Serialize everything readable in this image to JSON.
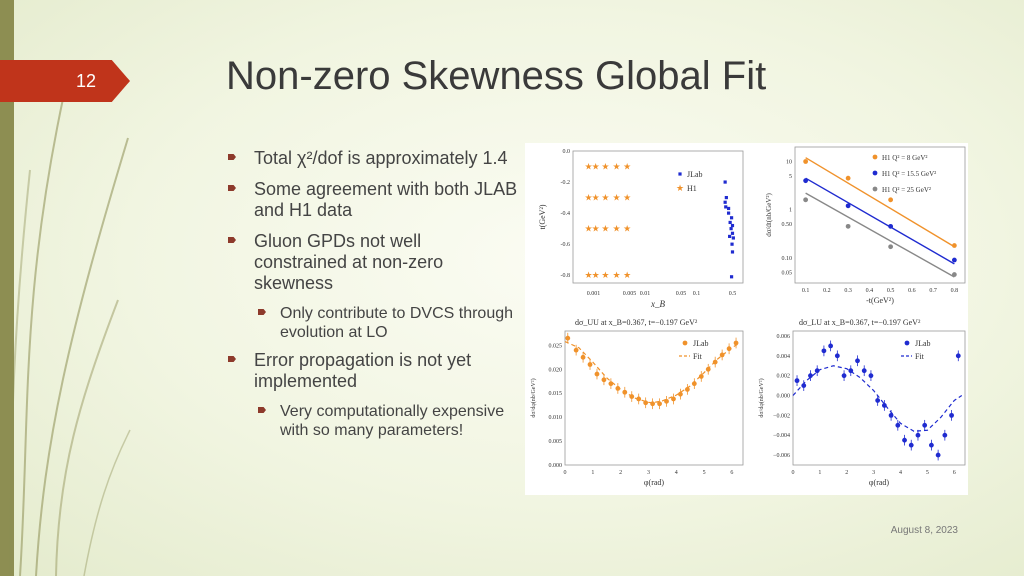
{
  "slide": {
    "number": "12",
    "title": "Non-zero Skewness Global Fit",
    "date": "August 8, 2023",
    "accent_color": "#c0341b",
    "bullet_color": "#8d3a2b"
  },
  "bullets": [
    {
      "text": "Total χ²/dof is approximately 1.4",
      "level": 1
    },
    {
      "text": "Some agreement with both JLAB and H1 data",
      "level": 1
    },
    {
      "text": "Gluon GPDs not well constrained at non-zero skewness",
      "level": 1
    },
    {
      "text": "Only contribute to DVCS through evolution at LO",
      "level": 2
    },
    {
      "text": "Error propagation is not yet implemented",
      "level": 1
    },
    {
      "text": "Very computationally expensive with so many parameters!",
      "level": 2
    }
  ],
  "chart_data": [
    {
      "type": "scatter",
      "xlabel": "x_B",
      "ylabel": "t(GeV²)",
      "x_scale": "log",
      "xticks": [
        "0.001",
        "0.005",
        "0.01",
        "0.05",
        "0.1",
        "0.5"
      ],
      "yticks": [
        "0.0",
        "-0.2",
        "-0.4",
        "-0.6",
        "-0.8"
      ],
      "ylim": [
        -0.85,
        0.0
      ],
      "legend": [
        "JLab",
        "H1"
      ],
      "series": [
        {
          "name": "H1",
          "color": "#f0922b",
          "marker": "star",
          "points": [
            [
              0.0008,
              -0.1
            ],
            [
              0.0011,
              -0.1
            ],
            [
              0.0017,
              -0.1
            ],
            [
              0.0028,
              -0.1
            ],
            [
              0.0045,
              -0.1
            ],
            [
              0.0008,
              -0.3
            ],
            [
              0.0011,
              -0.3
            ],
            [
              0.0017,
              -0.3
            ],
            [
              0.0028,
              -0.3
            ],
            [
              0.0045,
              -0.3
            ],
            [
              0.0008,
              -0.5
            ],
            [
              0.0011,
              -0.5
            ],
            [
              0.0017,
              -0.5
            ],
            [
              0.0028,
              -0.5
            ],
            [
              0.0045,
              -0.5
            ],
            [
              0.0008,
              -0.8
            ],
            [
              0.0011,
              -0.8
            ],
            [
              0.0017,
              -0.8
            ],
            [
              0.0028,
              -0.8
            ],
            [
              0.0045,
              -0.8
            ]
          ]
        },
        {
          "name": "JLab",
          "color": "#1f2bd0",
          "marker": "square",
          "points": [
            [
              0.36,
              -0.2
            ],
            [
              0.38,
              -0.3
            ],
            [
              0.36,
              -0.33
            ],
            [
              0.37,
              -0.36
            ],
            [
              0.42,
              -0.37
            ],
            [
              0.42,
              -0.4
            ],
            [
              0.48,
              -0.43
            ],
            [
              0.45,
              -0.46
            ],
            [
              0.5,
              -0.48
            ],
            [
              0.47,
              -0.5
            ],
            [
              0.5,
              -0.53
            ],
            [
              0.44,
              -0.55
            ],
            [
              0.52,
              -0.56
            ],
            [
              0.49,
              -0.6
            ],
            [
              0.5,
              -0.65
            ],
            [
              0.48,
              -0.81
            ]
          ]
        }
      ]
    },
    {
      "type": "line",
      "xlabel": "-t(GeV²)",
      "ylabel": "dσ/dt(nb/GeV²)",
      "y_scale": "log",
      "xticks": [
        "0.1",
        "0.2",
        "0.3",
        "0.4",
        "0.5",
        "0.6",
        "0.7",
        "0.8"
      ],
      "yticks": [
        "10",
        "5",
        "1",
        "0.50",
        "0.10",
        "0.05"
      ],
      "legend": [
        "H1 Q² = 8 GeV²",
        "H1 Q² = 15.5 GeV²",
        "H1 Q² = 25 GeV²"
      ],
      "series": [
        {
          "name": "H1 Q² = 8 GeV²",
          "color": "#f0922b",
          "points": [
            [
              0.1,
              10
            ],
            [
              0.3,
              4.5
            ],
            [
              0.5,
              1.6
            ],
            [
              0.8,
              0.18
            ]
          ],
          "fit": [
            [
              0.1,
              12
            ],
            [
              0.8,
              0.17
            ]
          ]
        },
        {
          "name": "H1 Q² = 15.5 GeV²",
          "color": "#1f2bd0",
          "points": [
            [
              0.1,
              4.0
            ],
            [
              0.3,
              1.2
            ],
            [
              0.5,
              0.45
            ],
            [
              0.8,
              0.09
            ]
          ],
          "fit": [
            [
              0.1,
              4.5
            ],
            [
              0.8,
              0.075
            ]
          ]
        },
        {
          "name": "H1 Q² = 25 GeV²",
          "color": "#888888",
          "points": [
            [
              0.1,
              1.6
            ],
            [
              0.3,
              0.45
            ],
            [
              0.5,
              0.17
            ],
            [
              0.8,
              0.045
            ]
          ],
          "fit": [
            [
              0.1,
              2.2
            ],
            [
              0.8,
              0.04
            ]
          ]
        }
      ]
    },
    {
      "type": "line",
      "title": "dσ_UU at x_B=0.367, t=−0.197 GeV²",
      "xlabel": "φ(rad)",
      "ylabel": "dσ/dφ(nb/GeV²)",
      "xticks": [
        "0",
        "1",
        "2",
        "3",
        "4",
        "5",
        "6"
      ],
      "yticks": [
        "0.025",
        "0.020",
        "0.015",
        "0.010",
        "0.005",
        "0.000"
      ],
      "xlim": [
        0,
        6.4
      ],
      "ylim": [
        0,
        0.028
      ],
      "legend": [
        "JLab",
        "Fit"
      ],
      "series": [
        {
          "name": "JLab",
          "color": "#f0922b",
          "points": [
            [
              0.1,
              0.0265
            ],
            [
              0.4,
              0.024
            ],
            [
              0.65,
              0.0225
            ],
            [
              0.9,
              0.021
            ],
            [
              1.15,
              0.019
            ],
            [
              1.4,
              0.0178
            ],
            [
              1.65,
              0.017
            ],
            [
              1.9,
              0.016
            ],
            [
              2.15,
              0.0152
            ],
            [
              2.4,
              0.0143
            ],
            [
              2.65,
              0.0138
            ],
            [
              2.9,
              0.013
            ],
            [
              3.15,
              0.0128
            ],
            [
              3.4,
              0.0128
            ],
            [
              3.65,
              0.0133
            ],
            [
              3.9,
              0.0138
            ],
            [
              4.15,
              0.0148
            ],
            [
              4.4,
              0.0158
            ],
            [
              4.65,
              0.017
            ],
            [
              4.9,
              0.0185
            ],
            [
              5.15,
              0.02
            ],
            [
              5.4,
              0.0215
            ],
            [
              5.65,
              0.023
            ],
            [
              5.9,
              0.0243
            ],
            [
              6.15,
              0.0255
            ]
          ]
        },
        {
          "name": "Fit",
          "color": "#f0922b",
          "dashed": true,
          "points": [
            [
              0,
              0.0258
            ],
            [
              0.5,
              0.0245
            ],
            [
              1,
              0.0215
            ],
            [
              1.5,
              0.0182
            ],
            [
              2,
              0.0158
            ],
            [
              2.5,
              0.014
            ],
            [
              3,
              0.0131
            ],
            [
              3.14,
              0.013
            ],
            [
              3.5,
              0.0134
            ],
            [
              4,
              0.0146
            ],
            [
              4.5,
              0.0165
            ],
            [
              5,
              0.0193
            ],
            [
              5.5,
              0.0222
            ],
            [
              6,
              0.0245
            ],
            [
              6.28,
              0.0255
            ]
          ]
        }
      ]
    },
    {
      "type": "line",
      "title": "dσ_LU at x_B=0.367, t=−0.197 GeV²",
      "xlabel": "φ(rad)",
      "ylabel": "dσ/dφ(nb/GeV²)",
      "xticks": [
        "0",
        "1",
        "2",
        "3",
        "4",
        "5",
        "6"
      ],
      "yticks": [
        "0.006",
        "0.004",
        "0.002",
        "0.000",
        "−0.002",
        "−0.004",
        "−0.006"
      ],
      "xlim": [
        0,
        6.4
      ],
      "ylim": [
        -0.007,
        0.0065
      ],
      "legend": [
        "JLab",
        "Fit"
      ],
      "series": [
        {
          "name": "JLab",
          "color": "#1f2bd0",
          "points": [
            [
              0.15,
              0.0015
            ],
            [
              0.4,
              0.001
            ],
            [
              0.65,
              0.002
            ],
            [
              0.9,
              0.0025
            ],
            [
              1.15,
              0.0045
            ],
            [
              1.4,
              0.005
            ],
            [
              1.65,
              0.004
            ],
            [
              1.9,
              0.002
            ],
            [
              2.15,
              0.0025
            ],
            [
              2.4,
              0.0035
            ],
            [
              2.65,
              0.0025
            ],
            [
              2.9,
              0.002
            ],
            [
              3.15,
              -0.0005
            ],
            [
              3.4,
              -0.001
            ],
            [
              3.65,
              -0.002
            ],
            [
              3.9,
              -0.003
            ],
            [
              4.15,
              -0.0045
            ],
            [
              4.4,
              -0.005
            ],
            [
              4.65,
              -0.004
            ],
            [
              4.9,
              -0.003
            ],
            [
              5.15,
              -0.005
            ],
            [
              5.4,
              -0.006
            ],
            [
              5.65,
              -0.004
            ],
            [
              5.9,
              -0.002
            ],
            [
              6.15,
              0.004
            ]
          ]
        },
        {
          "name": "Fit",
          "color": "#1f2bd0",
          "dashed": true,
          "points": [
            [
              0,
              0
            ],
            [
              0.5,
              0.0015
            ],
            [
              1,
              0.0026
            ],
            [
              1.5,
              0.003
            ],
            [
              2,
              0.0027
            ],
            [
              2.5,
              0.0018
            ],
            [
              3,
              0.0005
            ],
            [
              3.5,
              -0.0012
            ],
            [
              4,
              -0.0028
            ],
            [
              4.5,
              -0.0036
            ],
            [
              5,
              -0.0035
            ],
            [
              5.5,
              -0.0022
            ],
            [
              6,
              -0.0005
            ],
            [
              6.28,
              0
            ]
          ]
        }
      ]
    }
  ]
}
